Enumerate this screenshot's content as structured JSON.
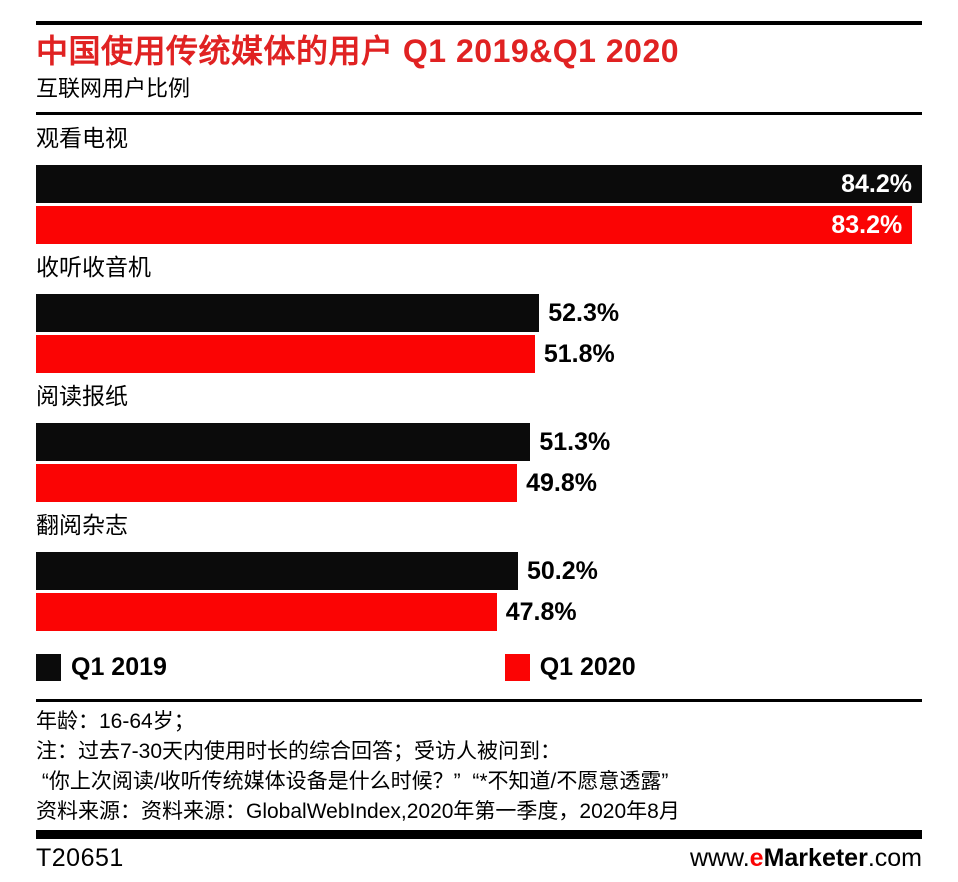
{
  "title": "中国使用传统媒体的用户 Q1 2019&Q1 2020",
  "subtitle": "互联网用户比例",
  "colors": {
    "title_red": "#e02222",
    "bar_red": "#fb0404",
    "bar_black": "#0b0b0b"
  },
  "chart_data": {
    "type": "bar",
    "orientation": "horizontal",
    "title": "中国使用传统媒体的用户 Q1 2019&Q1 2020",
    "subtitle": "互联网用户比例",
    "unit": "% of internet users",
    "categories": [
      "观看电视",
      "收听收音机",
      "阅读报纸",
      "翻阅杂志"
    ],
    "series": [
      {
        "name": "Q1 2019",
        "color": "#0b0b0b",
        "values": [
          84.2,
          52.3,
          51.3,
          50.2
        ]
      },
      {
        "name": "Q1 2020",
        "color": "#fb0404",
        "values": [
          83.2,
          51.8,
          49.8,
          47.8
        ]
      }
    ],
    "value_suffix": "%",
    "layout": {
      "grid": false,
      "legend_position": "bottom",
      "bar_width_pcts": [
        [
          100,
          98.9
        ],
        [
          56.8,
          56.3
        ],
        [
          55.8,
          54.3
        ],
        [
          54.4,
          52.0
        ]
      ],
      "value_label_inside": [
        true,
        false,
        false,
        false
      ]
    }
  },
  "legend": [
    {
      "label": "Q1 2019",
      "color": "#0b0b0b"
    },
    {
      "label": "Q1 2020",
      "color": "#fb0404"
    }
  ],
  "footnotes": [
    "年龄：16-64岁；",
    "注：过去7-30天内使用时长的综合回答；受访人被问到：",
    " “你上次阅读/收听传统媒体设备是什么时候？”  “*不知道/不愿意透露”",
    "资料来源：资料来源：GlobalWebIndex,2020年第一季度，2020年8月"
  ],
  "footer": {
    "chart_id": "T20651",
    "site": {
      "www": "www.",
      "e": "e",
      "marketer": "Marketer",
      "com": ".com"
    }
  }
}
